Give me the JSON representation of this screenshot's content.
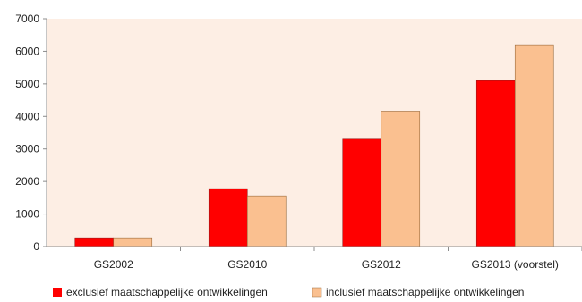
{
  "chart_data": {
    "type": "bar",
    "categories": [
      "GS2002",
      "GS2010",
      "GS2012",
      "GS2013 (voorstel)"
    ],
    "series": [
      {
        "name": "exclusief maatschappelijke ontwikkelingen",
        "values": [
          270,
          1780,
          3300,
          5100
        ],
        "color": "#ff0000",
        "stroke": "#9a1a1a"
      },
      {
        "name": "inclusief maatschappelijke ontwikkelingen",
        "values": [
          270,
          1560,
          4160,
          6200
        ],
        "color": "#fac090",
        "stroke": "#9a6a3a"
      }
    ],
    "ylim": [
      0,
      7000
    ],
    "yticks": [
      0,
      1000,
      2000,
      3000,
      4000,
      5000,
      6000,
      7000
    ],
    "plot_background": "#fdeee4",
    "grid": false,
    "legend_position": "bottom",
    "title": "",
    "xlabel": "",
    "ylabel": ""
  }
}
